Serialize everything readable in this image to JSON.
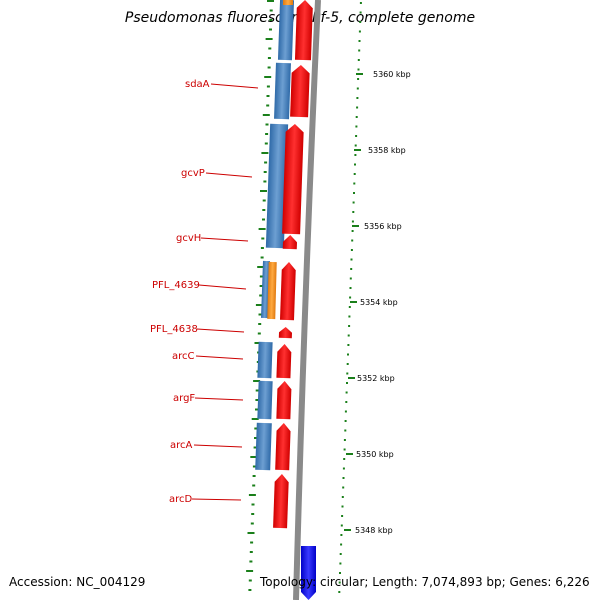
{
  "title": "Pseudomonas fluorescens Pf-5, complete genome",
  "footer": {
    "accession": "Accession: NC_004129",
    "stats": "Topology: circular; Length: 7,074,893 bp; Genes: 6,226"
  },
  "scale_ticks": [
    "5360 kbp",
    "5358 kbp",
    "5356 kbp",
    "5354 kbp",
    "5352 kbp",
    "5350 kbp",
    "5348 kbp"
  ],
  "gene_labels": [
    "sdaA",
    "gcvP",
    "gcvH",
    "PFL_4639",
    "PFL_4638",
    "arcC",
    "argF",
    "arcA",
    "arcD"
  ],
  "colors": {
    "label": "#cc0000",
    "blue_feature": "#4a7fb8",
    "red_feature": "#ee0000",
    "orange_feature": "#f08c1a",
    "dark_blue_feature": "#0000ee",
    "backbone": "#888888",
    "tick": "#1a7f1a"
  }
}
